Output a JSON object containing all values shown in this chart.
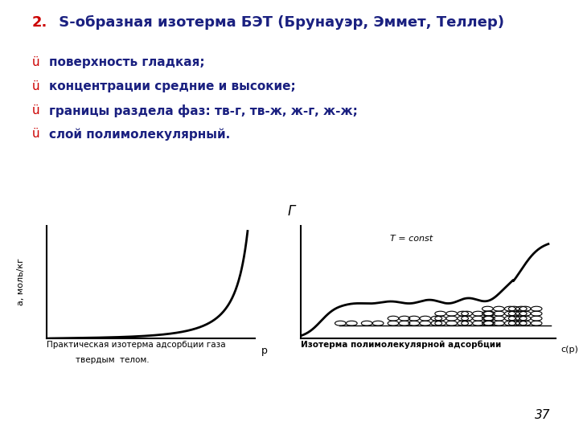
{
  "title_number": "2.",
  "title_main": " S-образная изотерма БЭТ (Брунауэр, Эммет, Теллер)",
  "title_color_number": "#cc0000",
  "title_color_main": "#1a2080",
  "title_fontsize": 13,
  "bullet_color": "#cc0000",
  "bullet_text_color": "#1a2080",
  "bullet_fontsize": 11,
  "bullets": [
    "поверхность гладкая;",
    "концентрации средние и высокие;",
    "границы раздела фаз: тв-г, тв-ж, ж-г, ж-ж;",
    "слой полимолекулярный."
  ],
  "left_ylabel": "а, моль/кг",
  "left_xlabel": "р",
  "left_caption_line1": "Практическая изотерма адсорбции газа",
  "left_caption_line2": "твердым  телом.",
  "right_ylabel": "Γ",
  "right_xlabel": "с(р)",
  "right_toplabel": "T = const",
  "right_caption": "Изотерма полимолекулярной адсорбции",
  "page_number": "37",
  "bg_color": "#ffffff",
  "axes_color": "#000000",
  "curve_color": "#000000",
  "curve_lw": 2.0
}
